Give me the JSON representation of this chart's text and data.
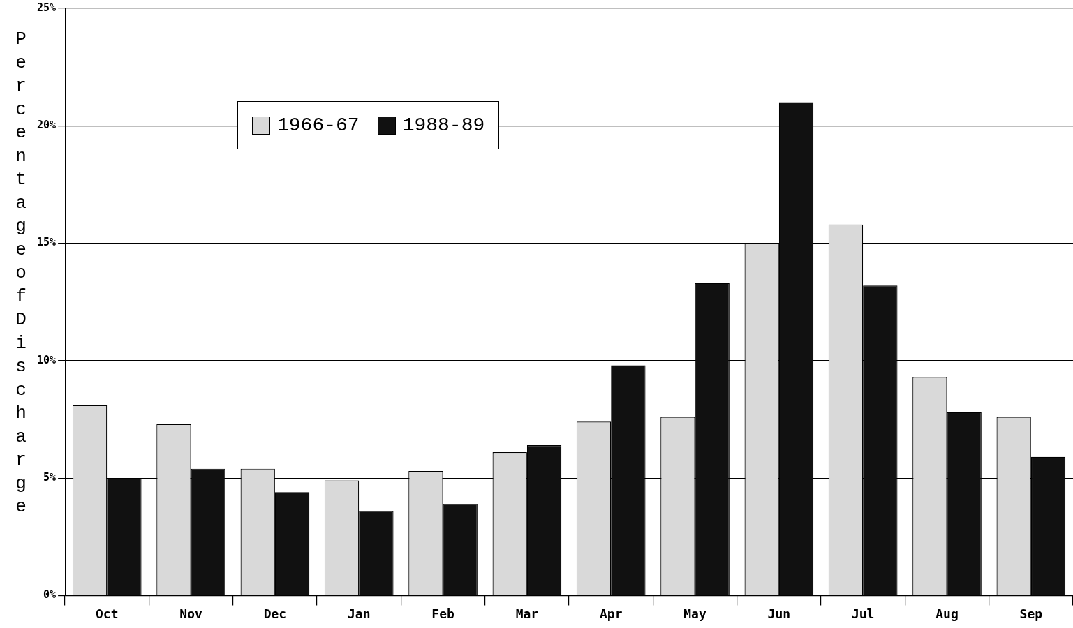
{
  "chart_data": {
    "type": "bar",
    "ylabel": "Percentage of Discharge",
    "categories": [
      "Oct",
      "Nov",
      "Dec",
      "Jan",
      "Feb",
      "Mar",
      "Apr",
      "May",
      "Jun",
      "Jul",
      "Aug",
      "Sep"
    ],
    "series": [
      {
        "name": "1966-67",
        "color": "#d9d9d9",
        "values": [
          8.1,
          7.3,
          5.4,
          4.9,
          5.3,
          6.1,
          7.4,
          7.6,
          15.0,
          15.8,
          9.3,
          7.6
        ]
      },
      {
        "name": "1988-89",
        "color": "#111111",
        "values": [
          5.0,
          5.4,
          4.4,
          3.6,
          3.9,
          6.4,
          9.8,
          13.3,
          21.0,
          13.2,
          7.8,
          5.9
        ]
      }
    ],
    "ylim": [
      0,
      25
    ],
    "yticks": [
      {
        "value": 0,
        "label": "0%"
      },
      {
        "value": 5,
        "label": "5%"
      },
      {
        "value": 10,
        "label": "10%"
      },
      {
        "value": 15,
        "label": "15%"
      },
      {
        "value": 20,
        "label": "20%"
      },
      {
        "value": 25,
        "label": "25%"
      }
    ],
    "grid": "y",
    "legend": "top left"
  }
}
